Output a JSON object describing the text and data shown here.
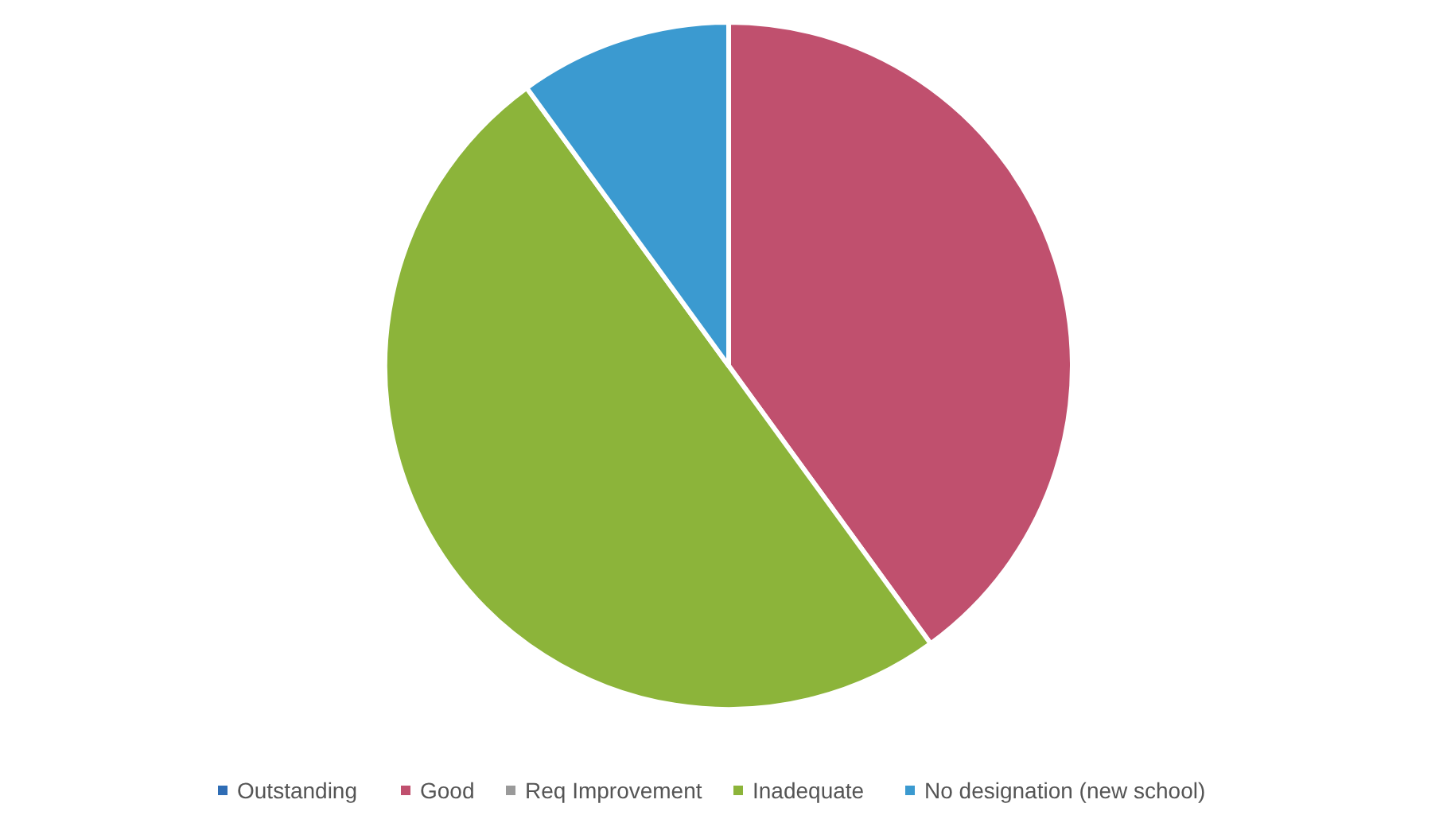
{
  "chart_data": {
    "type": "pie",
    "categories": [
      "Outstanding",
      "Good",
      "Req Improvement",
      "Inadequate",
      "No designation (new school)"
    ],
    "values": [
      0,
      40,
      0,
      50,
      10
    ],
    "colors": [
      "#2f6db5",
      "#c0506e",
      "#9a9a9a",
      "#8cb43a",
      "#3b9ad0"
    ],
    "legend": "bottom"
  }
}
